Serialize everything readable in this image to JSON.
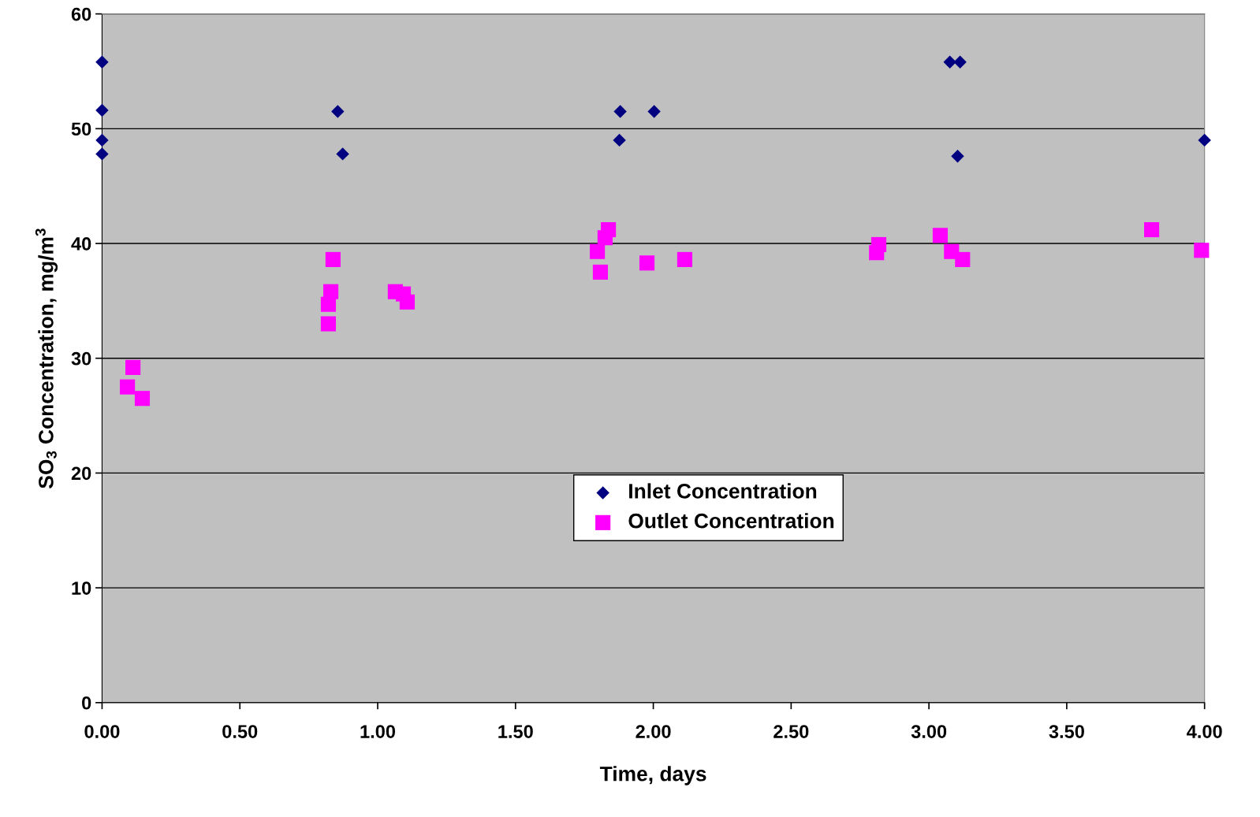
{
  "chart_data": {
    "type": "scatter",
    "xlabel": "Time, days",
    "ylabel": "SO$_{3}$ Concentration, mg/m$^{3}$",
    "xlim": [
      0,
      4
    ],
    "ylim": [
      0,
      60
    ],
    "xticks": [
      {
        "value": 0,
        "label": "0.00"
      },
      {
        "value": 0.5,
        "label": "0.50"
      },
      {
        "value": 1,
        "label": "1.00"
      },
      {
        "value": 1.5,
        "label": "1.50"
      },
      {
        "value": 2,
        "label": "2.00"
      },
      {
        "value": 2.5,
        "label": "2.50"
      },
      {
        "value": 3,
        "label": "3.00"
      },
      {
        "value": 3.5,
        "label": "3.50"
      },
      {
        "value": 4,
        "label": "4.00"
      }
    ],
    "yticks": [
      0,
      10,
      20,
      30,
      40,
      50,
      60
    ],
    "grid": "y",
    "legend": "bottom",
    "series": [
      {
        "name": "Inlet Concentration",
        "color": "#000080",
        "marker": "diamond",
        "x": [
          0,
          0,
          0,
          0,
          0.855,
          0.873,
          1.88,
          1.877,
          2.003,
          3.076,
          3.113,
          3.104,
          4.0
        ],
        "values": [
          55.8,
          51.6,
          49.0,
          47.8,
          51.5,
          47.8,
          51.5,
          49.0,
          51.5,
          55.8,
          55.8,
          47.6,
          49.0
        ]
      },
      {
        "name": "Outlet Concentration",
        "color": "#ff00ff",
        "marker": "square",
        "x": [
          0.092,
          0.112,
          0.146,
          0.821,
          0.821,
          0.83,
          0.838,
          1.064,
          1.093,
          1.107,
          1.797,
          1.808,
          1.825,
          1.837,
          1.977,
          2.114,
          2.81,
          2.818,
          3.041,
          3.082,
          3.122,
          3.808,
          3.989
        ],
        "values": [
          27.5,
          29.2,
          26.5,
          34.7,
          33.0,
          35.8,
          38.6,
          35.8,
          35.6,
          34.9,
          39.3,
          37.5,
          40.5,
          41.2,
          38.3,
          38.6,
          39.2,
          39.9,
          40.7,
          39.3,
          38.6,
          41.2,
          39.4
        ]
      }
    ]
  }
}
